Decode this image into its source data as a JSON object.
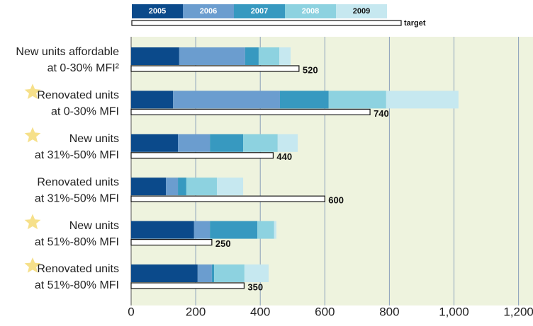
{
  "chart_data": {
    "type": "stacked-barh-target",
    "categories": [
      [
        "New units affordable",
        "at 0-30% MFI²"
      ],
      [
        "Renovated units",
        "at 0-30% MFI"
      ],
      [
        "New units",
        "at 31%-50% MFI"
      ],
      [
        "Renovated units",
        "at 31%-50% MFI"
      ],
      [
        "New units",
        "at 51%-80% MFI"
      ],
      [
        "Renovated units",
        "at 51%-80% MFI"
      ]
    ],
    "starred": [
      false,
      true,
      true,
      false,
      true,
      true
    ],
    "series": [
      {
        "name": "2005",
        "color": "#0b4a8b",
        "values": [
          149,
          130,
          145,
          108,
          195,
          206
        ]
      },
      {
        "name": "2006",
        "color": "#6b9dcf",
        "values": [
          204,
          331,
          99,
          37,
          49,
          44
        ]
      },
      {
        "name": "2007",
        "color": "#3799c0",
        "values": [
          42,
          151,
          103,
          26,
          147,
          7
        ]
      },
      {
        "name": "2008",
        "color": "#8dd2e0",
        "values": [
          64,
          178,
          107,
          95,
          52,
          94
        ]
      },
      {
        "name": "2009",
        "color": "#c6e8f0",
        "values": [
          35,
          224,
          62,
          81,
          7,
          75
        ]
      }
    ],
    "target": {
      "name": "target",
      "values": [
        520,
        740,
        440,
        600,
        250,
        350
      ]
    },
    "xlim": [
      0,
      1200
    ],
    "xticks": [
      0,
      200,
      400,
      600,
      800,
      {
        "value": 1000,
        "label": "1,000"
      },
      {
        "value": 1200,
        "label": "1,200"
      }
    ],
    "grid": true
  }
}
